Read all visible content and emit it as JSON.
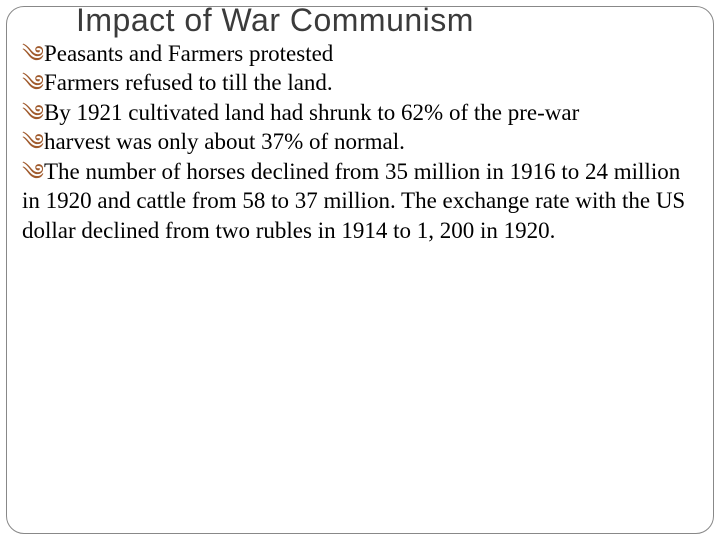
{
  "slide": {
    "title": "Impact of War Communism",
    "title_color": "#3b3b3b",
    "title_fontsize": 32,
    "title_font": "Arial",
    "bullets": [
      {
        "text": "Peasants and Farmers protested",
        "continuations": []
      },
      {
        "text": "Farmers refused to till the land.",
        "continuations": []
      },
      {
        "text": "By 1921 cultivated land had shrunk to 62% of the pre-war",
        "continuations": []
      },
      {
        "text": "harvest was only about 37% of normal.",
        "continuations": []
      },
      {
        "text": "The number of horses declined from 35 million in 1916 to 24 million in 1920 and cattle from 58 to 37 million. The exchange rate with the US dollar declined from two rubles in 1914 to 1, 200 in 1920.",
        "continuations": []
      }
    ],
    "bullet_marker": "༄",
    "bullet_marker_color": "#a05a2c",
    "body_fontsize": 23,
    "body_color": "#000000",
    "frame_border_color": "#888888",
    "frame_border_radius": 18,
    "background_color": "#ffffff"
  }
}
